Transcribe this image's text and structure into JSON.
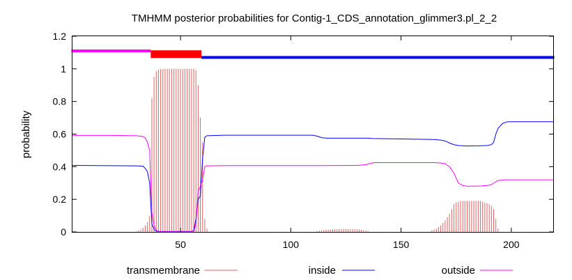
{
  "chart_data": {
    "type": "line",
    "title": "TMHMM posterior probabilities for Contig-1_CDS_annotation_glimmer3.pl_2_2",
    "xlabel": "",
    "ylabel": "probability",
    "xlim": [
      1,
      219
    ],
    "ylim": [
      0,
      1.2
    ],
    "x_ticks": [
      50,
      100,
      150,
      200
    ],
    "y_ticks": [
      0,
      0.2,
      0.4,
      0.6,
      0.8,
      1,
      1.2
    ],
    "y_tick_labels": [
      "0",
      "0.2",
      "0.4",
      "0.6",
      "0.8",
      "1",
      "1.2"
    ],
    "grid": false,
    "legend_position": "bottom",
    "topology_bars": [
      {
        "region": "outside",
        "start": 1,
        "end": 36,
        "color": "#ff00ff",
        "level": 1.11
      },
      {
        "region": "transmembrane",
        "start": 37,
        "end": 59,
        "color": "#ff0000",
        "level": 1.09
      },
      {
        "region": "inside",
        "start": 60,
        "end": 219,
        "color": "#0000ff",
        "level": 1.07
      }
    ],
    "series": [
      {
        "name": "transmembrane",
        "color": "#e06060",
        "style": "impulses",
        "points": [
          [
            30,
            0.003
          ],
          [
            31,
            0.008
          ],
          [
            32,
            0.015
          ],
          [
            33,
            0.025
          ],
          [
            34,
            0.04
          ],
          [
            35,
            0.06
          ],
          [
            36,
            0.1
          ],
          [
            37,
            0.82
          ],
          [
            38,
            0.95
          ],
          [
            39,
            0.985
          ],
          [
            40,
            0.995
          ],
          [
            41,
            0.998
          ],
          [
            42,
            0.999
          ],
          [
            43,
            1.0
          ],
          [
            44,
            1.0
          ],
          [
            45,
            1.0
          ],
          [
            46,
            1.0
          ],
          [
            47,
            1.0
          ],
          [
            48,
            1.0
          ],
          [
            49,
            1.0
          ],
          [
            50,
            1.0
          ],
          [
            51,
            1.0
          ],
          [
            52,
            1.0
          ],
          [
            53,
            1.0
          ],
          [
            54,
            1.0
          ],
          [
            55,
            1.0
          ],
          [
            56,
            1.0
          ],
          [
            57,
            0.99
          ],
          [
            58,
            0.9
          ],
          [
            59,
            0.7
          ],
          [
            60,
            0.55
          ],
          [
            61,
            0.08
          ],
          [
            62,
            0.02
          ],
          [
            112,
            0.005
          ],
          [
            113,
            0.008
          ],
          [
            114,
            0.01
          ],
          [
            115,
            0.012
          ],
          [
            116,
            0.013
          ],
          [
            117,
            0.014
          ],
          [
            118,
            0.015
          ],
          [
            119,
            0.016
          ],
          [
            120,
            0.017
          ],
          [
            121,
            0.017
          ],
          [
            122,
            0.018
          ],
          [
            123,
            0.018
          ],
          [
            124,
            0.018
          ],
          [
            125,
            0.018
          ],
          [
            126,
            0.018
          ],
          [
            127,
            0.018
          ],
          [
            128,
            0.017
          ],
          [
            129,
            0.017
          ],
          [
            130,
            0.016
          ],
          [
            131,
            0.015
          ],
          [
            132,
            0.013
          ],
          [
            133,
            0.011
          ],
          [
            134,
            0.008
          ],
          [
            135,
            0.005
          ],
          [
            164,
            0.01
          ],
          [
            165,
            0.015
          ],
          [
            166,
            0.02
          ],
          [
            167,
            0.03
          ],
          [
            168,
            0.04
          ],
          [
            169,
            0.055
          ],
          [
            170,
            0.07
          ],
          [
            171,
            0.09
          ],
          [
            172,
            0.11
          ],
          [
            173,
            0.14
          ],
          [
            174,
            0.17
          ],
          [
            175,
            0.18
          ],
          [
            176,
            0.185
          ],
          [
            177,
            0.19
          ],
          [
            178,
            0.19
          ],
          [
            179,
            0.19
          ],
          [
            180,
            0.19
          ],
          [
            181,
            0.19
          ],
          [
            182,
            0.19
          ],
          [
            183,
            0.19
          ],
          [
            184,
            0.19
          ],
          [
            185,
            0.19
          ],
          [
            186,
            0.19
          ],
          [
            187,
            0.185
          ],
          [
            188,
            0.18
          ],
          [
            189,
            0.175
          ],
          [
            190,
            0.17
          ],
          [
            191,
            0.16
          ],
          [
            192,
            0.14
          ],
          [
            193,
            0.08
          ],
          [
            194,
            0.02
          ]
        ]
      },
      {
        "name": "inside",
        "color": "#0000ff",
        "style": "line",
        "points": [
          [
            1,
            0.408
          ],
          [
            20,
            0.406
          ],
          [
            30,
            0.405
          ],
          [
            33,
            0.403
          ],
          [
            34,
            0.39
          ],
          [
            35,
            0.37
          ],
          [
            36,
            0.3
          ],
          [
            37,
            0.05
          ],
          [
            38,
            0.015
          ],
          [
            39,
            0.005
          ],
          [
            40,
            0.002
          ],
          [
            55,
            0.002
          ],
          [
            56,
            0.01
          ],
          [
            57,
            0.08
          ],
          [
            58,
            0.2
          ],
          [
            59,
            0.22
          ],
          [
            60,
            0.45
          ],
          [
            61,
            0.58
          ],
          [
            62,
            0.59
          ],
          [
            70,
            0.593
          ],
          [
            110,
            0.593
          ],
          [
            112,
            0.587
          ],
          [
            114,
            0.578
          ],
          [
            116,
            0.575
          ],
          [
            135,
            0.575
          ],
          [
            137,
            0.573
          ],
          [
            165,
            0.567
          ],
          [
            168,
            0.563
          ],
          [
            170,
            0.558
          ],
          [
            172,
            0.545
          ],
          [
            174,
            0.535
          ],
          [
            176,
            0.53
          ],
          [
            180,
            0.527
          ],
          [
            185,
            0.528
          ],
          [
            189,
            0.53
          ],
          [
            191,
            0.535
          ],
          [
            192,
            0.55
          ],
          [
            193,
            0.6
          ],
          [
            194,
            0.635
          ],
          [
            196,
            0.665
          ],
          [
            198,
            0.675
          ],
          [
            200,
            0.676
          ],
          [
            219,
            0.676
          ]
        ]
      },
      {
        "name": "outside",
        "color": "#ff00ff",
        "style": "line",
        "points": [
          [
            1,
            0.592
          ],
          [
            20,
            0.592
          ],
          [
            30,
            0.59
          ],
          [
            33,
            0.585
          ],
          [
            34,
            0.575
          ],
          [
            35,
            0.55
          ],
          [
            36,
            0.5
          ],
          [
            37,
            0.12
          ],
          [
            38,
            0.04
          ],
          [
            39,
            0.01
          ],
          [
            40,
            0.003
          ],
          [
            56,
            0.003
          ],
          [
            57,
            0.05
          ],
          [
            58,
            0.25
          ],
          [
            59,
            0.28
          ],
          [
            60,
            0.32
          ],
          [
            61,
            0.4
          ],
          [
            62,
            0.405
          ],
          [
            70,
            0.407
          ],
          [
            110,
            0.407
          ],
          [
            112,
            0.407
          ],
          [
            130,
            0.408
          ],
          [
            134,
            0.412
          ],
          [
            136,
            0.42
          ],
          [
            138,
            0.425
          ],
          [
            165,
            0.425
          ],
          [
            168,
            0.423
          ],
          [
            170,
            0.418
          ],
          [
            172,
            0.4
          ],
          [
            174,
            0.36
          ],
          [
            176,
            0.3
          ],
          [
            178,
            0.285
          ],
          [
            180,
            0.28
          ],
          [
            186,
            0.282
          ],
          [
            189,
            0.285
          ],
          [
            191,
            0.29
          ],
          [
            192,
            0.3
          ],
          [
            194,
            0.315
          ],
          [
            197,
            0.32
          ],
          [
            200,
            0.32
          ],
          [
            219,
            0.32
          ]
        ]
      }
    ]
  }
}
